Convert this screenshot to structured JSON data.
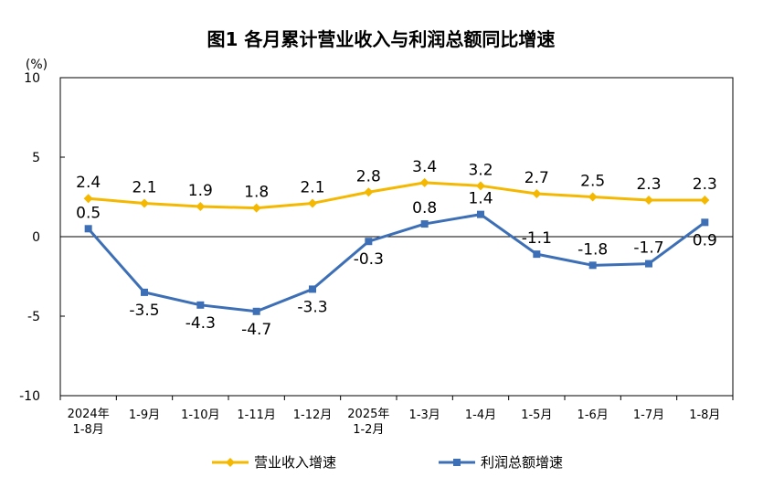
{
  "chart_data": {
    "type": "line",
    "title": "图1  各月累计营业收入与利润总额同比增速",
    "unit_label": "(%)",
    "categories": [
      [
        "2024年",
        "1-8月"
      ],
      [
        "1-9月"
      ],
      [
        "1-10月"
      ],
      [
        "1-11月"
      ],
      [
        "1-12月"
      ],
      [
        "2025年",
        "1-2月"
      ],
      [
        "1-3月"
      ],
      [
        "1-4月"
      ],
      [
        "1-5月"
      ],
      [
        "1-6月"
      ],
      [
        "1-7月"
      ],
      [
        "1-8月"
      ]
    ],
    "ylim": [
      -10,
      10
    ],
    "yticks": [
      -10,
      -5,
      0,
      5,
      10
    ],
    "grid": false,
    "legend_position": "bottom",
    "series": [
      {
        "name": "营业收入增速",
        "color": "#F5B800",
        "marker": "diamond",
        "values": [
          2.4,
          2.1,
          1.9,
          1.8,
          2.1,
          2.8,
          3.4,
          3.2,
          2.7,
          2.5,
          2.3,
          2.3
        ],
        "labels": [
          "2.4",
          "2.1",
          "1.9",
          "1.8",
          "2.1",
          "2.8",
          "3.4",
          "3.2",
          "2.7",
          "2.5",
          "2.3",
          "2.3"
        ]
      },
      {
        "name": "利润总额增速",
        "color": "#3D6FB6",
        "marker": "square",
        "values": [
          0.5,
          -3.5,
          -4.3,
          -4.7,
          -3.3,
          -0.3,
          0.8,
          1.4,
          -1.1,
          -1.8,
          -1.7,
          0.9
        ],
        "labels": [
          "0.5",
          "-3.5",
          "-4.3",
          "-4.7",
          "-3.3",
          "-0.3",
          "0.8",
          "1.4",
          "-1.1",
          "-1.8",
          "-1.7",
          "0.9"
        ]
      }
    ]
  }
}
